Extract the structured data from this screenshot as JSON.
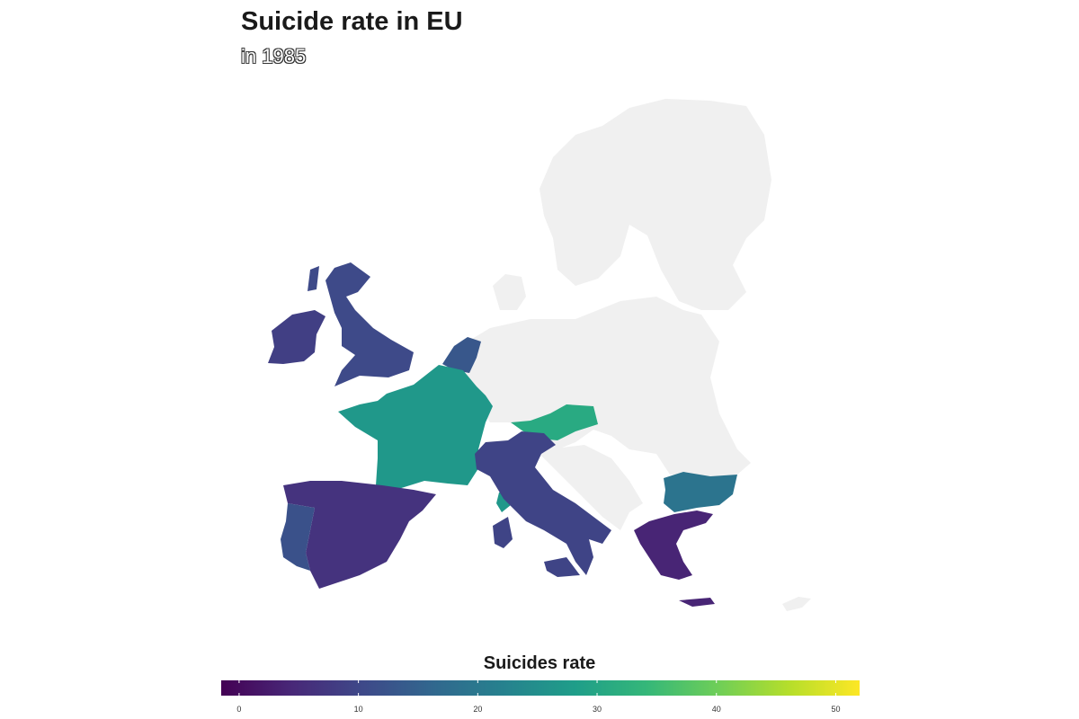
{
  "title": "Suicide rate in EU",
  "subtitle": "in 1985",
  "legend": {
    "title": "Suicides rate",
    "min": -1.5,
    "max": 52,
    "ticks": [
      0,
      10,
      20,
      30,
      40,
      50
    ],
    "tick_labels": [
      "0",
      "10",
      "20",
      "30",
      "40",
      "50"
    ],
    "palette": [
      "#440154",
      "#482878",
      "#3e4989",
      "#31688e",
      "#26828e",
      "#1f9e89",
      "#35b779",
      "#6ece58",
      "#b5de2b",
      "#fde725"
    ]
  },
  "no_data_color": "#f0f0f0",
  "countries": [
    {
      "name": "Ireland",
      "value": 8.5
    },
    {
      "name": "United Kingdom",
      "value": 10.5
    },
    {
      "name": "Netherlands",
      "value": 13
    },
    {
      "name": "France",
      "value": 27
    },
    {
      "name": "Austria",
      "value": 31
    },
    {
      "name": "Italy",
      "value": 9.5
    },
    {
      "name": "Spain",
      "value": 6.5
    },
    {
      "name": "Portugal",
      "value": 12
    },
    {
      "name": "Bulgaria",
      "value": 19
    },
    {
      "name": "Greece",
      "value": 4
    }
  ]
}
